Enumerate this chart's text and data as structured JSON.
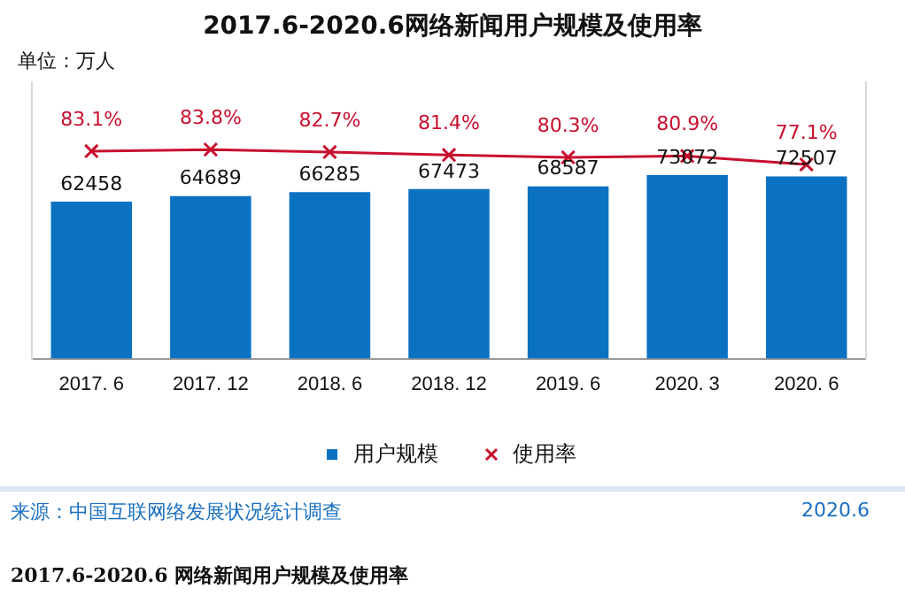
{
  "chart_data": {
    "type": "bar",
    "title": "2017.6-2020.6网络新闻用户规模及使用率",
    "categories": [
      "2017. 6",
      "2017. 12",
      "2018. 6",
      "2018. 12",
      "2019. 6",
      "2020. 3",
      "2020. 6"
    ],
    "series": [
      {
        "name": "用户规模",
        "color": "#0b72c2",
        "values": [
          62458,
          64689,
          66285,
          67473,
          68587,
          73072,
          72507
        ]
      },
      {
        "name": "使用率",
        "type": "line",
        "axis": "y2",
        "color": "#c8102e",
        "marker": "cross",
        "values": [
          83.1,
          83.8,
          82.7,
          81.4,
          80.3,
          80.9,
          77.1
        ],
        "value_labels": [
          "83.1%",
          "83.8%",
          "82.7%",
          "81.4%",
          "80.3%",
          "80.9%",
          "77.1%"
        ]
      }
    ],
    "ylim": [
      0,
      110000
    ],
    "y2lim": [
      -10,
      114
    ],
    "tick_labels": "x",
    "grid": false,
    "legend": "bottom",
    "data_labels": true,
    "annotations": [
      "单位：万人",
      "来源：中国互联网络发展状况统计调查",
      "2020.6",
      "2017.6-2020.6 网络新闻用户规模及使用率"
    ]
  }
}
